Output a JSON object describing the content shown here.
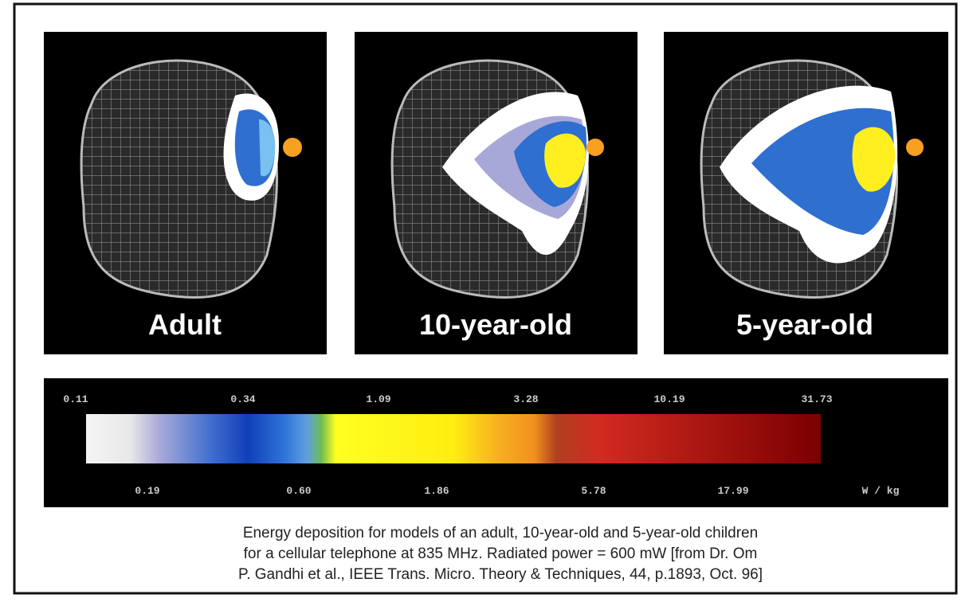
{
  "panels": [
    {
      "label": "Adult"
    },
    {
      "label": "10-year-old"
    },
    {
      "label": "5-year-old"
    }
  ],
  "colorbar": {
    "top_labels": [
      "0.11",
      "0.34",
      "1.09",
      "3.28",
      "10.19",
      "31.73"
    ],
    "bottom_labels": [
      "0.19",
      "0.60",
      "1.86",
      "5.78",
      "17.99"
    ],
    "unit": "W / kg"
  },
  "caption": {
    "lines": [
      "Energy deposition for models of an adult, 10-year-old and 5-year-old children",
      "for a cellular telephone at 835 MHz.  Radiated power = 600 mW [from Dr. Om",
      "P. Gandhi et al., IEEE Trans. Micro. Theory & Techniques, 44, p.1893, Oct. 96]"
    ]
  }
}
